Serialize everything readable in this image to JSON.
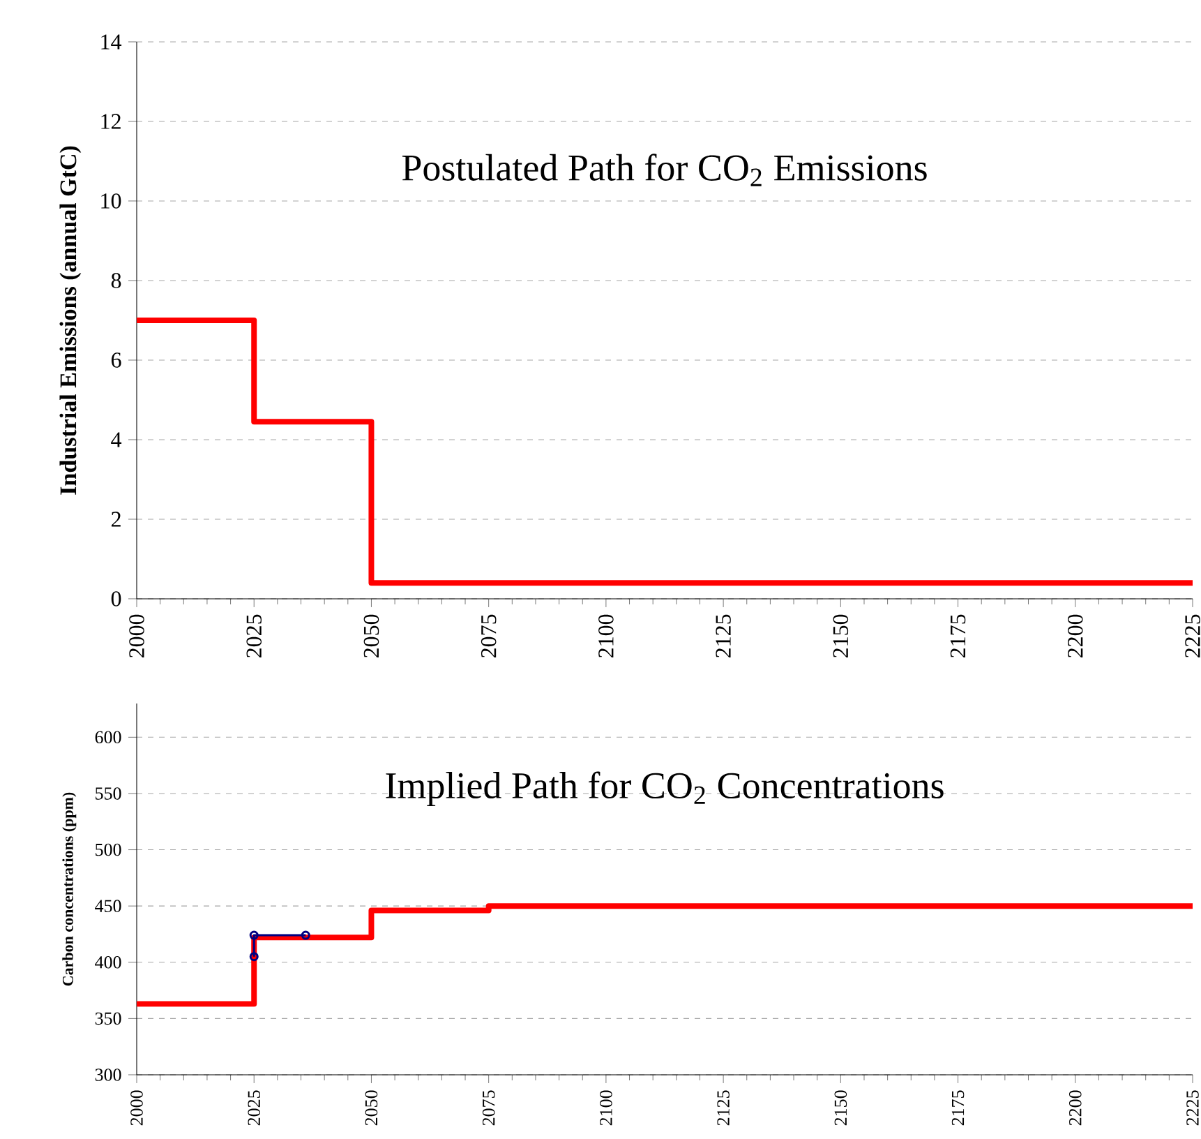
{
  "chart_data": [
    {
      "type": "step",
      "title": "Postulated Path for CO$_{2}$ Emissions",
      "ylabel": "Industrial Emissions (annual GtC)",
      "xlim": [
        2000,
        2225
      ],
      "xticks": [
        2000,
        2025,
        2050,
        2075,
        2100,
        2125,
        2150,
        2175,
        2200,
        2225
      ],
      "ylim": [
        0,
        14
      ],
      "yticks": [
        0,
        2,
        4,
        6,
        8,
        10,
        12,
        14
      ],
      "grid": "y",
      "series": [
        {
          "color": "#ff0000",
          "x": [
            2000,
            2025,
            2050,
            2225
          ],
          "values": [
            7,
            4.45,
            0.4,
            0.4
          ]
        }
      ]
    },
    {
      "type": "step",
      "title": "Implied Path for CO$_{2}$ Concentrations",
      "ylabel": "Carbon concentrations (ppm)",
      "xlim": [
        2000,
        2225
      ],
      "xticks": [
        2000,
        2025,
        2050,
        2075,
        2100,
        2125,
        2150,
        2175,
        2200,
        2225
      ],
      "ylim": [
        300,
        630
      ],
      "yticks": [
        300,
        350,
        400,
        450,
        500,
        550,
        600
      ],
      "grid": "y",
      "series": [
        {
          "color": "#ff0000",
          "x": [
            2000,
            2025,
            2050,
            2075,
            2225
          ],
          "values": [
            363,
            422,
            446,
            450,
            450
          ]
        },
        {
          "type": "line",
          "color": "#000080",
          "marker": "circle",
          "x": [
            2025,
            2025,
            2036
          ],
          "values": [
            405,
            424,
            424
          ]
        }
      ]
    }
  ]
}
